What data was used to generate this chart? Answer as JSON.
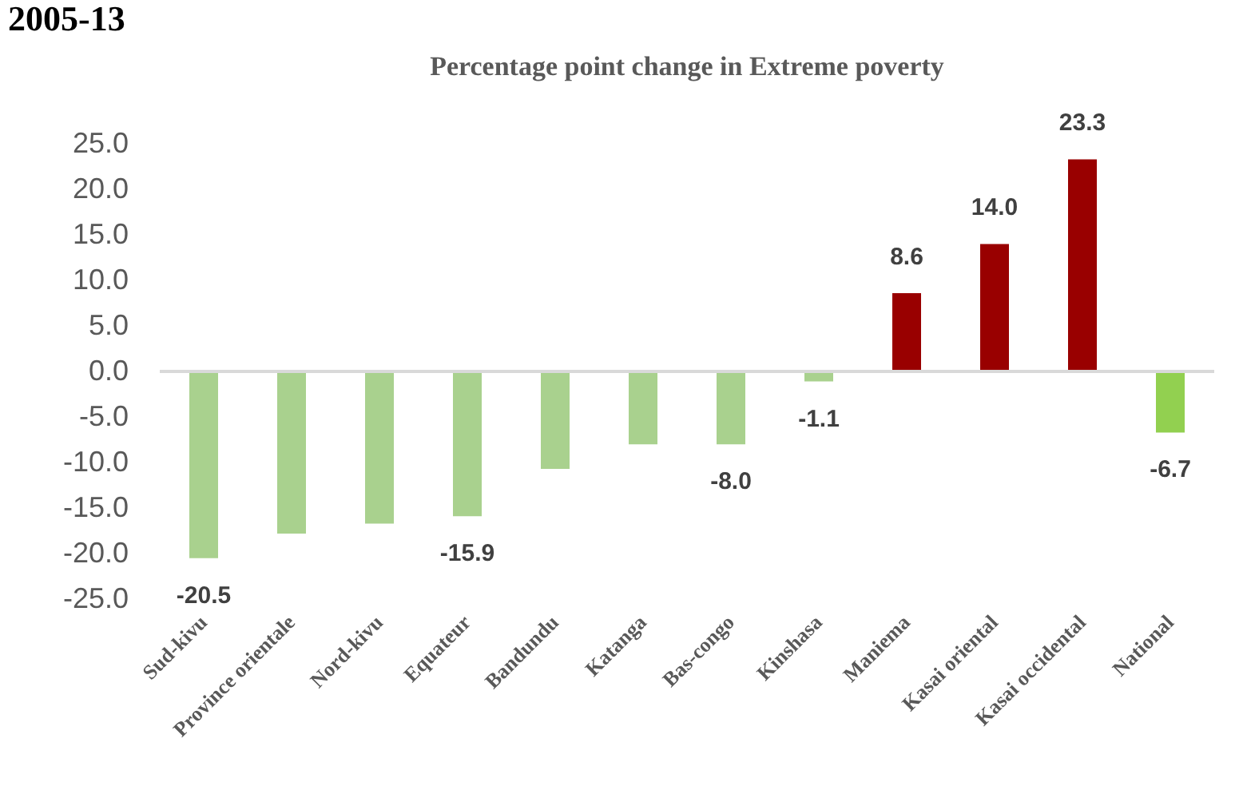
{
  "chart_data": {
    "type": "bar",
    "title": "Percentage point change in Extreme poverty",
    "annotations": [
      "2005-13"
    ],
    "categories": [
      "Sud-kivu",
      "Province orientale",
      "Nord-kivu",
      "Equateur",
      "Bandundu",
      "Katanga",
      "Bas-congo",
      "Kinshasa",
      "Maniema",
      "Kasai oriental",
      "Kasai occidental",
      "National"
    ],
    "values": [
      -20.5,
      -17.8,
      -16.7,
      -15.9,
      -10.7,
      -8.0,
      -8.0,
      -1.1,
      8.6,
      14.0,
      23.3,
      -6.7
    ],
    "colors": [
      "#a9d18e",
      "#a9d18e",
      "#a9d18e",
      "#a9d18e",
      "#a9d18e",
      "#a9d18e",
      "#a9d18e",
      "#a9d18e",
      "#990000",
      "#990000",
      "#990000",
      "#92d050"
    ],
    "value_labels": [
      "-20.5",
      null,
      null,
      "-15.9",
      null,
      null,
      "-8.0",
      "-1.1",
      "8.6",
      "14.0",
      "23.3",
      "-6.7"
    ],
    "ylim": [
      -25,
      25
    ],
    "yticks": [
      {
        "value": -25,
        "label": "-25.0"
      },
      {
        "value": -20,
        "label": "-20.0"
      },
      {
        "value": -15,
        "label": "-15.0"
      },
      {
        "value": -10,
        "label": "-10.0"
      },
      {
        "value": -5,
        "label": "-5.0"
      },
      {
        "value": 0,
        "label": "0.0"
      },
      {
        "value": 5,
        "label": "5.0"
      },
      {
        "value": 10,
        "label": "10.0"
      },
      {
        "value": 15,
        "label": "15.0"
      },
      {
        "value": 20,
        "label": "20.0"
      },
      {
        "value": 25,
        "label": "25.0"
      }
    ],
    "ref_lines": [
      {
        "axis": "y",
        "value": 0,
        "color": "#d9d9d9"
      }
    ],
    "grid": false
  }
}
